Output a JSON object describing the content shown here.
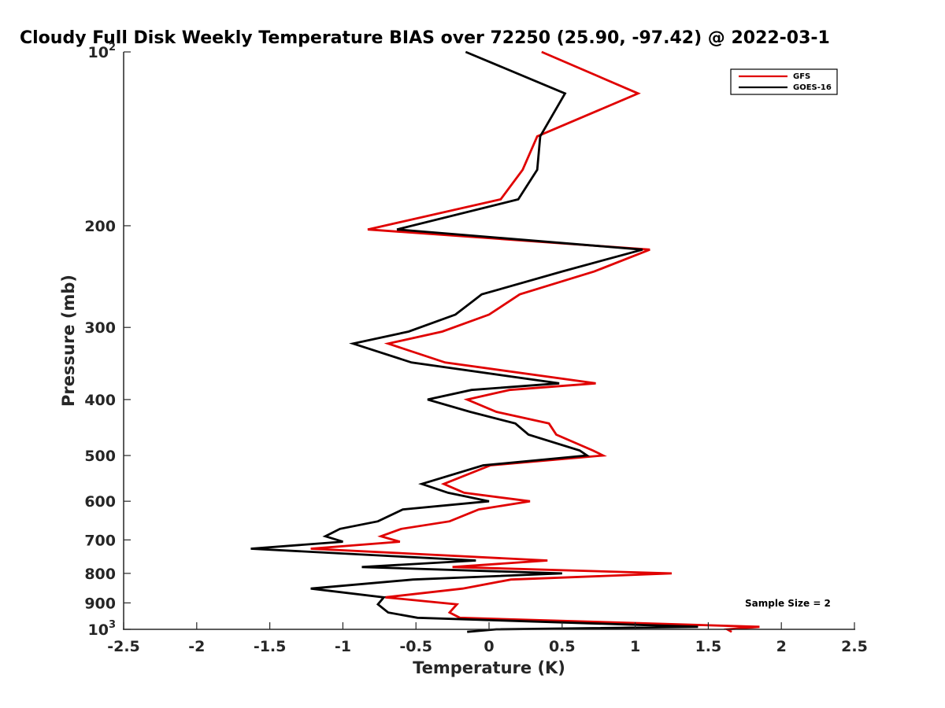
{
  "chart_data": {
    "type": "line",
    "title": "Cloudy Full Disk Weekly Temperature BIAS over 72250 (25.90, -97.42) @ 2022-03-1",
    "xlabel": "Temperature (K)",
    "ylabel": "Pressure (mb)",
    "xlim": [
      -2.5,
      2.5
    ],
    "ylim": [
      100,
      1000
    ],
    "y_scale": "log",
    "y_reversed": true,
    "x_ticks": [
      "-2.5",
      "-2",
      "-1.5",
      "-1",
      "-0.5",
      "0",
      "0.5",
      "1",
      "1.5",
      "2",
      "2.5"
    ],
    "y_ticks": [
      {
        "value": 100,
        "base": "10",
        "exp": "2"
      },
      {
        "value": 200,
        "label": "200"
      },
      {
        "value": 300,
        "label": "300"
      },
      {
        "value": 400,
        "label": "400"
      },
      {
        "value": 500,
        "label": "500"
      },
      {
        "value": 600,
        "label": "600"
      },
      {
        "value": 700,
        "label": "700"
      },
      {
        "value": 800,
        "label": "800"
      },
      {
        "value": 900,
        "label": "900"
      },
      {
        "value": 1000,
        "base": "10",
        "exp": "3"
      }
    ],
    "legend_position": "top-right",
    "annotation": "Sample Size = 2",
    "series": [
      {
        "name": "GFS",
        "color": "#e00000",
        "x": [
          0.36,
          1.02,
          0.33,
          0.23,
          0.08,
          -0.83,
          1.1,
          0.72,
          0.21,
          0.0,
          -0.32,
          -0.69,
          -0.3,
          0.73,
          0.14,
          -0.15,
          0.05,
          0.41,
          0.46,
          0.71,
          0.78,
          0.01,
          -0.31,
          -0.17,
          0.28,
          -0.07,
          -0.27,
          -0.6,
          -0.74,
          -0.61,
          -1.22,
          0.4,
          -0.25,
          1.25,
          0.15,
          -0.18,
          -0.71,
          -0.22,
          -0.27,
          -0.2,
          1.85,
          1.63,
          1.66
        ],
        "y": [
          100,
          118,
          140,
          160,
          180,
          203,
          220,
          240,
          263,
          285,
          305,
          320,
          345,
          375,
          385,
          400,
          420,
          440,
          460,
          490,
          500,
          520,
          560,
          580,
          600,
          620,
          650,
          670,
          690,
          705,
          725,
          760,
          780,
          800,
          820,
          850,
          880,
          905,
          935,
          955,
          990,
          1000,
          1010
        ]
      },
      {
        "name": "GOES-16",
        "color": "#000000",
        "x": [
          -0.16,
          0.52,
          0.35,
          0.33,
          0.2,
          -0.63,
          1.05,
          0.5,
          -0.05,
          -0.23,
          -0.55,
          -0.93,
          -0.53,
          0.48,
          -0.12,
          -0.42,
          -0.13,
          0.18,
          0.27,
          0.62,
          0.67,
          -0.04,
          -0.46,
          -0.28,
          0.0,
          -0.59,
          -0.76,
          -1.02,
          -1.12,
          -1.0,
          -1.63,
          -0.09,
          -0.87,
          0.5,
          -0.52,
          -1.22,
          -0.72,
          -0.76,
          -0.69,
          -0.49,
          1.43,
          0.05,
          -0.15
        ],
        "y": [
          100,
          118,
          140,
          160,
          180,
          203,
          220,
          240,
          263,
          285,
          305,
          320,
          345,
          375,
          385,
          400,
          420,
          440,
          460,
          490,
          500,
          520,
          560,
          580,
          600,
          620,
          650,
          670,
          690,
          705,
          725,
          760,
          780,
          800,
          820,
          850,
          880,
          905,
          935,
          955,
          990,
          1000,
          1010
        ]
      }
    ]
  }
}
